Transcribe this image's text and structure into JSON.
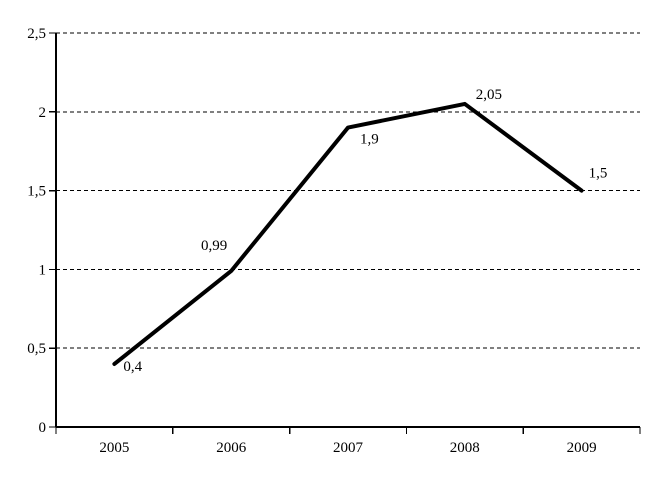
{
  "chart_data": {
    "type": "line",
    "title": "",
    "xlabel": "",
    "ylabel": "",
    "categories": [
      "2005",
      "2006",
      "2007",
      "2008",
      "2009"
    ],
    "series": [
      {
        "name": "",
        "values": [
          0.4,
          0.99,
          1.9,
          2.05,
          1.5
        ],
        "data_labels": [
          "0,4",
          "0,99",
          "1,9",
          "2,05",
          "1,5"
        ]
      }
    ],
    "y_ticks": [
      {
        "value": 0,
        "label": "0"
      },
      {
        "value": 0.5,
        "label": "0,5"
      },
      {
        "value": 1,
        "label": "1"
      },
      {
        "value": 1.5,
        "label": "1,5"
      },
      {
        "value": 2,
        "label": "2"
      },
      {
        "value": 2.5,
        "label": "2,5"
      }
    ],
    "ylim": [
      0,
      2.5
    ],
    "grid": "horizontal-dashed",
    "legend": "none",
    "line_color": "#000000",
    "axis_color": "#000000",
    "gridline_color": "#000000",
    "background_color": "#ffffff",
    "decimal_separator": ","
  }
}
